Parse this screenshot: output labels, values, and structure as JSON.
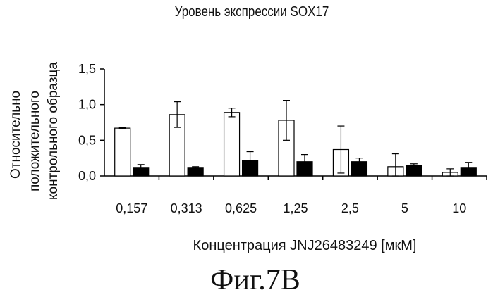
{
  "chart_data": {
    "type": "bar",
    "title": "Уровень экспрессии SOX17",
    "xlabel": "Концентрация JNJ26483249 [мкМ]",
    "ylabel": [
      "Относительно",
      "положительного",
      "контрольного образца"
    ],
    "categories": [
      "0,157",
      "0,313",
      "0,625",
      "1,25",
      "2,5",
      "5",
      "10"
    ],
    "ylim": [
      0,
      1.5
    ],
    "yticks": [
      "0,0",
      "0,5",
      "1,0",
      "1,5"
    ],
    "series": [
      {
        "fill": "#ffffff",
        "values": [
          0.67,
          0.86,
          0.89,
          0.78,
          0.37,
          0.13,
          0.05
        ],
        "errors": [
          0.01,
          0.18,
          0.06,
          0.28,
          0.33,
          0.18,
          0.05
        ]
      },
      {
        "fill": "#000000",
        "values": [
          0.12,
          0.12,
          0.22,
          0.2,
          0.2,
          0.15,
          0.12
        ],
        "errors": [
          0.04,
          0.01,
          0.12,
          0.1,
          0.05,
          0.02,
          0.07
        ]
      }
    ],
    "grid": false,
    "legend": "none"
  },
  "figure_caption": "Фиг.7B"
}
